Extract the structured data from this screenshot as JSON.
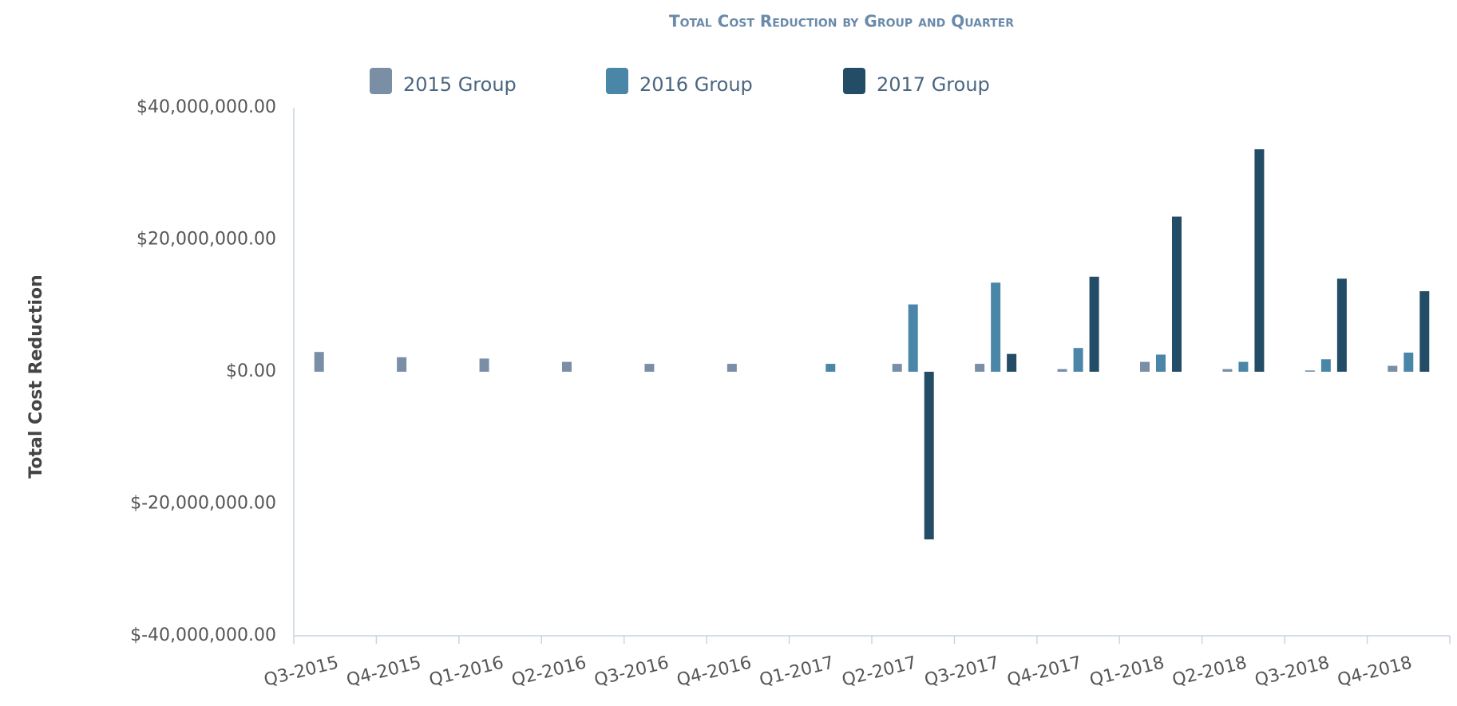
{
  "chart_data": {
    "type": "bar",
    "title": "Total Cost Reduction by Group and Quarter",
    "y_label": "Total Cost Reduction",
    "categories": [
      "Q3-2015",
      "Q4-2015",
      "Q1-2016",
      "Q2-2016",
      "Q3-2016",
      "Q4-2016",
      "Q1-2017",
      "Q2-2017",
      "Q3-2017",
      "Q4-2017",
      "Q1-2018",
      "Q2-2018",
      "Q3-2018",
      "Q4-2018"
    ],
    "series": [
      {
        "name": "2015 Group",
        "color": "#7a8fa6",
        "values": [
          3000000,
          2200000,
          2000000,
          1500000,
          1200000,
          1200000,
          null,
          1200000,
          1200000,
          400000,
          1500000,
          400000,
          200000,
          900000
        ]
      },
      {
        "name": "2016 Group",
        "color": "#4a86a8",
        "values": [
          null,
          null,
          null,
          null,
          null,
          null,
          1200000,
          10200000,
          13500000,
          3600000,
          2600000,
          1500000,
          1900000,
          2900000
        ]
      },
      {
        "name": "2017 Group",
        "color": "#234c66",
        "values": [
          null,
          null,
          null,
          null,
          null,
          null,
          null,
          -25400000,
          2700000,
          14400000,
          23500000,
          33700000,
          14100000,
          12200000
        ]
      }
    ],
    "ylim": [
      -40000000,
      40000000
    ],
    "yticks": [
      {
        "value": -40000000,
        "label": "$-40,000,000.00"
      },
      {
        "value": -20000000,
        "label": "$-20,000,000.00"
      },
      {
        "value": 0,
        "label": "$0.00"
      },
      {
        "value": 20000000,
        "label": "$20,000,000.00"
      },
      {
        "value": 40000000,
        "label": "$40,000,000.00"
      }
    ],
    "grid": false,
    "legend": "top"
  }
}
